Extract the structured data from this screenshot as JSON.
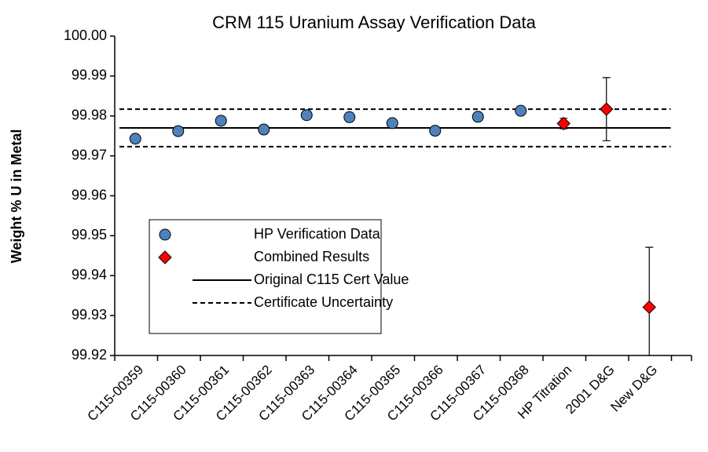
{
  "chart_data": {
    "type": "scatter",
    "title": "CRM 115 Uranium Assay Verification Data",
    "y_label": "Weight % U in Metal",
    "categories": [
      "C115-00359",
      "C115-00360",
      "C115-00361",
      "C115-00362",
      "C115-00363",
      "C115-00364",
      "C115-00365",
      "C115-00366",
      "C115-00367",
      "C115-00368",
      "HP Titration",
      "2001 D&G",
      "New D&G"
    ],
    "series": [
      {
        "name": "HP Verification Data",
        "color": "#4f81bd",
        "marker": "circle",
        "values": [
          99.9743,
          99.9762,
          99.9788,
          99.9766,
          99.9802,
          99.9797,
          99.9782,
          99.9763,
          99.9798,
          99.9813,
          null,
          null,
          null
        ]
      },
      {
        "name": "Combined Results",
        "color": "#ff0000",
        "marker": "diamond",
        "values": [
          null,
          null,
          null,
          null,
          null,
          null,
          null,
          null,
          null,
          null,
          99.9781,
          99.9817,
          99.9321
        ],
        "errors": [
          null,
          null,
          null,
          null,
          null,
          null,
          null,
          null,
          null,
          null,
          0.0013,
          0.0079,
          0.015
        ]
      }
    ],
    "reference_lines": [
      {
        "name": "Original C115 Cert Value",
        "style": "solid",
        "values": [
          99.977
        ]
      },
      {
        "name": "Certificate Uncertainty",
        "style": "dashed",
        "values": [
          99.9817,
          99.9723
        ]
      }
    ],
    "ylim": [
      99.92,
      100.0
    ],
    "yticks": [
      99.92,
      99.93,
      99.94,
      99.95,
      99.96,
      99.97,
      99.98,
      99.99,
      {
        "value": 100.0,
        "label": "100.00"
      }
    ],
    "grid": false,
    "legend": "lower-left"
  }
}
